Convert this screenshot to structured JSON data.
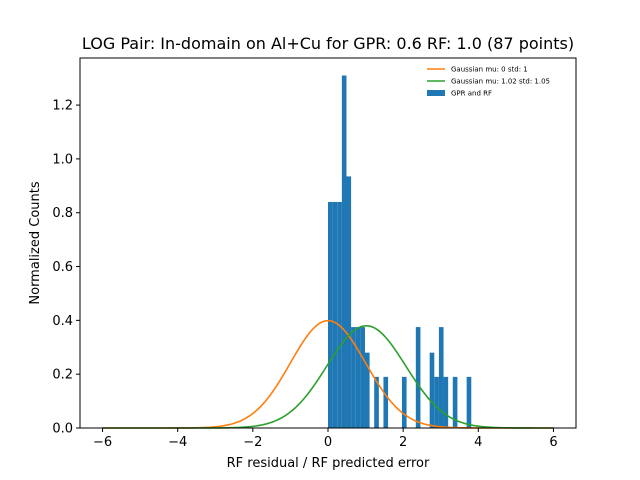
{
  "chart_data": {
    "type": "bar",
    "title": "LOG Pair: In-domain on Al+Cu for GPR: 0.6 RF: 1.0 (87 points)",
    "xlabel": "RF residual / RF predicted error",
    "ylabel": "Normalized Counts",
    "xlim": [
      -6.6,
      6.6
    ],
    "ylim": [
      0,
      1.375
    ],
    "xticks": [
      -6,
      -4,
      -2,
      0,
      2,
      4,
      6
    ],
    "xtick_labels": [
      "−6",
      "−4",
      "−2",
      "0",
      "2",
      "4",
      "6"
    ],
    "yticks": [
      0.0,
      0.2,
      0.4,
      0.6,
      0.8,
      1.0,
      1.2
    ],
    "ytick_labels": [
      "0.0",
      "0.2",
      "0.4",
      "0.6",
      "0.8",
      "1.0",
      "1.2"
    ],
    "grid": false,
    "legend_position": "top-right",
    "histogram": {
      "name": "GPR and RF",
      "color": "#1f77b4",
      "bin_width": 0.123,
      "bins": [
        {
          "x": 0.0,
          "value": 0.84
        },
        {
          "x": 0.123,
          "value": 0.84
        },
        {
          "x": 0.246,
          "value": 0.84
        },
        {
          "x": 0.369,
          "value": 1.31
        },
        {
          "x": 0.492,
          "value": 0.935
        },
        {
          "x": 0.615,
          "value": 0.375
        },
        {
          "x": 0.738,
          "value": 0.375
        },
        {
          "x": 0.861,
          "value": 0.375
        },
        {
          "x": 0.984,
          "value": 0.28
        },
        {
          "x": 1.107,
          "value": 0.0
        },
        {
          "x": 1.23,
          "value": 0.19
        },
        {
          "x": 1.353,
          "value": 0.0
        },
        {
          "x": 1.476,
          "value": 0.19
        },
        {
          "x": 1.599,
          "value": 0.0
        },
        {
          "x": 1.722,
          "value": 0.0
        },
        {
          "x": 1.845,
          "value": 0.0
        },
        {
          "x": 1.968,
          "value": 0.19
        },
        {
          "x": 2.091,
          "value": 0.0
        },
        {
          "x": 2.214,
          "value": 0.0
        },
        {
          "x": 2.337,
          "value": 0.375
        },
        {
          "x": 2.46,
          "value": 0.0
        },
        {
          "x": 2.583,
          "value": 0.0
        },
        {
          "x": 2.706,
          "value": 0.28
        },
        {
          "x": 2.829,
          "value": 0.19
        },
        {
          "x": 2.952,
          "value": 0.375
        },
        {
          "x": 3.075,
          "value": 0.19
        },
        {
          "x": 3.198,
          "value": 0.0
        },
        {
          "x": 3.321,
          "value": 0.19
        },
        {
          "x": 3.444,
          "value": 0.0
        },
        {
          "x": 3.567,
          "value": 0.0
        },
        {
          "x": 3.69,
          "value": 0.19
        }
      ]
    },
    "curves": [
      {
        "name": "Gaussian mu: 0 std: 1",
        "color": "#ff7f0e",
        "mu": 0,
        "std": 1,
        "x_range": [
          -6,
          6
        ]
      },
      {
        "name": "Gaussian mu: 1.02 std: 1.05",
        "color": "#2ca02c",
        "mu": 1.02,
        "std": 1.05,
        "x_range": [
          -6,
          6
        ]
      }
    ]
  }
}
